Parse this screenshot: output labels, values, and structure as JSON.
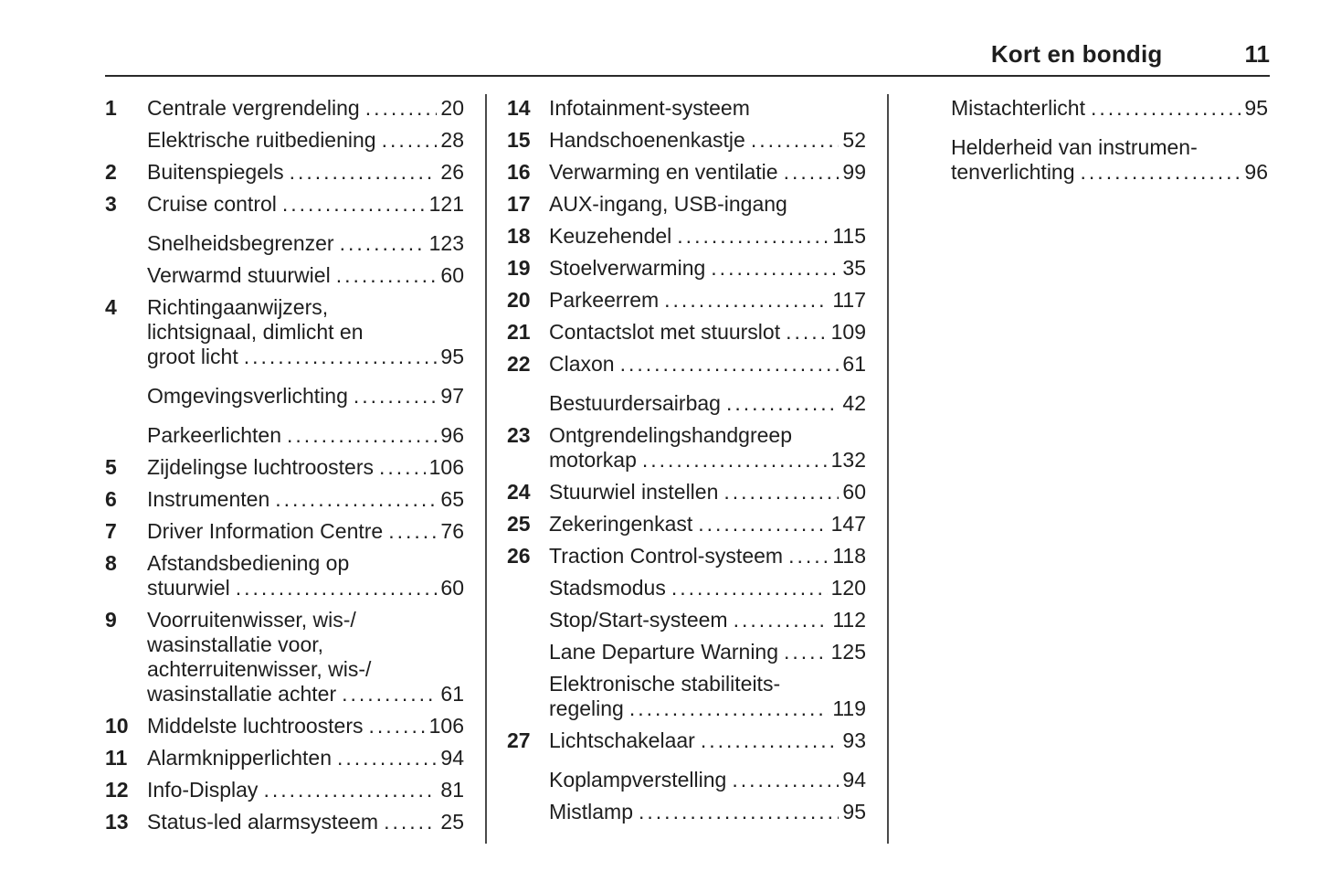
{
  "header": {
    "title": "Kort en bondig",
    "page_number": "11"
  },
  "colors": {
    "ink": "#1e1e1e",
    "background": "#ffffff",
    "rule": "#2a2a2a",
    "column_divider": "#4a4a4a"
  },
  "columns": [
    {
      "entries": [
        {
          "num": "1",
          "lines": [
            "Centrale vergrendeling"
          ],
          "page": "20",
          "gap": false
        },
        {
          "num": "",
          "lines": [
            "Elektrische ruitbediening"
          ],
          "page": "28",
          "gap": false
        },
        {
          "num": "2",
          "lines": [
            "Buitenspiegels"
          ],
          "page": "26",
          "gap": false
        },
        {
          "num": "3",
          "lines": [
            "Cruise control"
          ],
          "page": "121",
          "gap": false
        },
        {
          "num": "",
          "lines": [
            "Snelheidsbegrenzer"
          ],
          "page": "123",
          "gap": true
        },
        {
          "num": "",
          "lines": [
            "Verwarmd stuurwiel"
          ],
          "page": "60",
          "gap": false
        },
        {
          "num": "4",
          "lines": [
            "Richtingaanwijzers,",
            "lichtsignaal, dimlicht en",
            "groot licht"
          ],
          "page": "95",
          "gap": false
        },
        {
          "num": "",
          "lines": [
            "Omgevingsverlichting"
          ],
          "page": "97",
          "gap": true
        },
        {
          "num": "",
          "lines": [
            "Parkeerlichten"
          ],
          "page": "96",
          "gap": true
        },
        {
          "num": "5",
          "lines": [
            "Zijdelingse luchtroosters"
          ],
          "page": "106",
          "gap": false
        },
        {
          "num": "6",
          "lines": [
            "Instrumenten"
          ],
          "page": "65",
          "gap": false
        },
        {
          "num": "7",
          "lines": [
            "Driver Information Centre"
          ],
          "page": "76",
          "gap": false
        },
        {
          "num": "8",
          "lines": [
            "Afstandsbediening op",
            "stuurwiel"
          ],
          "page": "60",
          "gap": false
        },
        {
          "num": "9",
          "lines": [
            "Voorruitenwisser, wis-/",
            "wasinstallatie voor,",
            "achterruitenwisser, wis-/",
            "wasinstallatie achter"
          ],
          "page": "61",
          "gap": false
        },
        {
          "num": "10",
          "lines": [
            "Middelste luchtroosters"
          ],
          "page": "106",
          "gap": false
        },
        {
          "num": "11",
          "lines": [
            "Alarmknipperlichten"
          ],
          "page": "94",
          "gap": false
        },
        {
          "num": "12",
          "lines": [
            "Info-Display"
          ],
          "page": "81",
          "gap": false
        },
        {
          "num": "13",
          "lines": [
            "Status-led alarmsysteem"
          ],
          "page": "25",
          "gap": false
        }
      ]
    },
    {
      "entries": [
        {
          "num": "14",
          "lines": [
            "Infotainment-systeem"
          ],
          "page": "",
          "gap": false
        },
        {
          "num": "15",
          "lines": [
            "Handschoenenkastje"
          ],
          "page": "52",
          "gap": false
        },
        {
          "num": "16",
          "lines": [
            "Verwarming en ventilatie"
          ],
          "page": "99",
          "gap": false
        },
        {
          "num": "17",
          "lines": [
            "AUX-ingang, USB-ingang"
          ],
          "page": "",
          "gap": false
        },
        {
          "num": "18",
          "lines": [
            "Keuzehendel"
          ],
          "page": "115",
          "gap": false
        },
        {
          "num": "19",
          "lines": [
            "Stoelverwarming"
          ],
          "page": "35",
          "gap": false
        },
        {
          "num": "20",
          "lines": [
            "Parkeerrem"
          ],
          "page": "117",
          "gap": false
        },
        {
          "num": "21",
          "lines": [
            "Contactslot met stuurslot"
          ],
          "page": "109",
          "gap": false
        },
        {
          "num": "22",
          "lines": [
            "Claxon"
          ],
          "page": "61",
          "gap": false
        },
        {
          "num": "",
          "lines": [
            "Bestuurdersairbag"
          ],
          "page": "42",
          "gap": true
        },
        {
          "num": "23",
          "lines": [
            "Ontgrendelingshandgreep",
            "motorkap"
          ],
          "page": "132",
          "gap": false
        },
        {
          "num": "24",
          "lines": [
            "Stuurwiel instellen"
          ],
          "page": "60",
          "gap": false
        },
        {
          "num": "25",
          "lines": [
            "Zekeringenkast"
          ],
          "page": "147",
          "gap": false
        },
        {
          "num": "26",
          "lines": [
            "Traction Control-systeem"
          ],
          "page": "118",
          "gap": false
        },
        {
          "num": "",
          "lines": [
            "Stadsmodus"
          ],
          "page": "120",
          "gap": false
        },
        {
          "num": "",
          "lines": [
            "Stop/Start-systeem"
          ],
          "page": "112",
          "gap": false
        },
        {
          "num": "",
          "lines": [
            "Lane Departure Warning"
          ],
          "page": "125",
          "gap": false
        },
        {
          "num": "",
          "lines": [
            "Elektronische stabiliteits-",
            "regeling"
          ],
          "page": "119",
          "gap": false
        },
        {
          "num": "27",
          "lines": [
            "Lichtschakelaar"
          ],
          "page": "93",
          "gap": false
        },
        {
          "num": "",
          "lines": [
            "Koplampverstelling"
          ],
          "page": "94",
          "gap": true
        },
        {
          "num": "",
          "lines": [
            "Mistlamp"
          ],
          "page": "95",
          "gap": false
        }
      ]
    },
    {
      "entries": [
        {
          "num": "",
          "lines": [
            "Mistachterlicht"
          ],
          "page": "95",
          "gap": false
        },
        {
          "num": "",
          "lines": [
            "Helderheid van instrumen-",
            "tenverlichting"
          ],
          "page": "96",
          "gap": true
        }
      ]
    }
  ]
}
